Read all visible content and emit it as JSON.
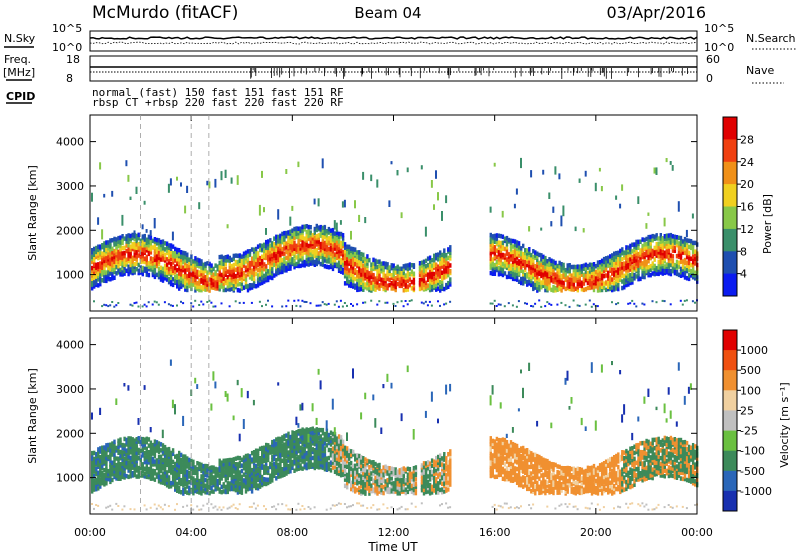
{
  "header": {
    "station": "McMurdo (fitACF)",
    "beam": "Beam 04",
    "date": "03/Apr/2016"
  },
  "strips": {
    "nsky_label": "N.Sky",
    "nsearch_label": "N.Search",
    "left_top_tick": "10^5",
    "left_bottom_tick": "10^0",
    "right_top_tick": "10^5",
    "right_bottom_tick": "10^0",
    "freq_label_1": "Freq.",
    "freq_label_2": "[MHz]",
    "freq_top_tick": "18",
    "freq_bottom_tick": "8",
    "nave_label": "Nave",
    "nave_top_tick": "60",
    "nave_bottom_tick": "0",
    "cpid_label": "CPID",
    "cpid_row1": "normal  (fast)  150 fast  151  fast 151 RF",
    "cpid_row2": "rbsp CT +rbsp 220 fast 220 fast 220 RF"
  },
  "chart_data": [
    {
      "type": "heatmap",
      "title": "",
      "xlabel": "Time UT",
      "ylabel": "Slant Range [km]",
      "x_ticks": [
        "00:00",
        "04:00",
        "08:00",
        "12:00",
        "16:00",
        "20:00",
        "00:00"
      ],
      "xlim_hours": [
        0,
        24
      ],
      "y_ticks": [
        1000,
        2000,
        3000,
        4000
      ],
      "ylim": [
        180,
        4600
      ],
      "colorbar": {
        "label": "Power [dB]",
        "ticks": [
          "4",
          "8",
          "12",
          "16",
          "20",
          "24",
          "28"
        ],
        "colors": [
          "#0b1cf0",
          "#1f4fb0",
          "#3a8f6a",
          "#88c848",
          "#f0d020",
          "#f09018",
          "#f04010",
          "#e00000"
        ]
      },
      "dominant_echo_band_km": [
        700,
        1800
      ],
      "data_gap_hours": [
        14.2,
        15.8
      ]
    },
    {
      "type": "heatmap",
      "title": "",
      "xlabel": "Time UT",
      "ylabel": "Slant Range [km]",
      "x_ticks": [
        "00:00",
        "04:00",
        "08:00",
        "12:00",
        "16:00",
        "20:00",
        "00:00"
      ],
      "xlim_hours": [
        0,
        24
      ],
      "y_ticks": [
        1000,
        2000,
        3000,
        4000
      ],
      "ylim": [
        180,
        4600
      ],
      "colorbar": {
        "label": "Velocity [m s⁻¹]",
        "ticks": [
          "1000",
          "500",
          "100",
          "25",
          "-25",
          "-100",
          "-500",
          "-1000"
        ],
        "colors": [
          "#1830b0",
          "#2a66b8",
          "#3c8a5a",
          "#6ac040",
          "#c0c0c0",
          "#f0d0a0",
          "#f09030",
          "#f05010",
          "#e00000"
        ]
      },
      "dominant_echo_band_km": [
        700,
        1800
      ],
      "data_gap_hours": [
        14.2,
        15.8
      ]
    }
  ],
  "axis": {
    "time_label": "Time UT"
  }
}
